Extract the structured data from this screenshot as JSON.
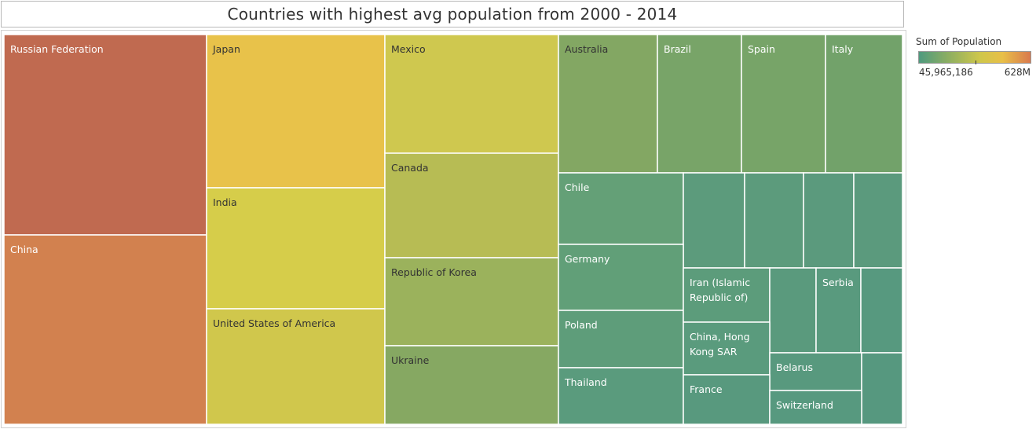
{
  "header": {
    "title": "Countries with highest avg population from 2000 - 2014"
  },
  "legend": {
    "title": "Sum of Population",
    "min_label": "45,965,186",
    "max_label": "628M",
    "colors": [
      "#4f9a7f",
      "#8aad63",
      "#cfc74b",
      "#e8bf48",
      "#d9794e"
    ]
  },
  "chart_data": {
    "type": "treemap",
    "title": "Countries with highest avg population from 2000 - 2014",
    "measure": "Sum of Population",
    "color_range": [
      "45,965,186",
      "628M"
    ],
    "items": [
      {
        "label": "Russian Federation",
        "color": "#c06a50"
      },
      {
        "label": "China",
        "color": "#d2814f"
      },
      {
        "label": "Japan",
        "color": "#e8c24a"
      },
      {
        "label": "India",
        "color": "#d6cd4a"
      },
      {
        "label": "United States of America",
        "color": "#d0c74c"
      },
      {
        "label": "Mexico",
        "color": "#cfc84f"
      },
      {
        "label": "Canada",
        "color": "#b7bc54"
      },
      {
        "label": "Republic of Korea",
        "color": "#9bb25c"
      },
      {
        "label": "Ukraine",
        "color": "#86a862"
      },
      {
        "label": "Australia",
        "color": "#83a763"
      },
      {
        "label": "Brazil",
        "color": "#78a468"
      },
      {
        "label": "Spain",
        "color": "#77a468"
      },
      {
        "label": "Italy",
        "color": "#72a26a"
      },
      {
        "label": "Chile",
        "color": "#64a077"
      },
      {
        "label": "",
        "color": "#5c9b7c"
      },
      {
        "label": "",
        "color": "#5c9b7c"
      },
      {
        "label": "",
        "color": "#5b9a7d"
      },
      {
        "label": "",
        "color": "#5b9a7d"
      },
      {
        "label": "Germany",
        "color": "#619f78"
      },
      {
        "label": "Poland",
        "color": "#5e9d7a"
      },
      {
        "label": "Thailand",
        "color": "#5a9b7d"
      },
      {
        "label": "Iran (Islamic Republic of)",
        "color": "#5c9c7b"
      },
      {
        "label": "",
        "color": "#5a9a7d"
      },
      {
        "label": "Serbia",
        "color": "#599a7e"
      },
      {
        "label": "",
        "color": "#57997f"
      },
      {
        "label": "China, Hong Kong SAR",
        "color": "#5a9b7d"
      },
      {
        "label": "Belarus",
        "color": "#58997e"
      },
      {
        "label": "",
        "color": "#56987f"
      },
      {
        "label": "France",
        "color": "#58997e"
      },
      {
        "label": "Switzerland",
        "color": "#57997f"
      }
    ]
  }
}
